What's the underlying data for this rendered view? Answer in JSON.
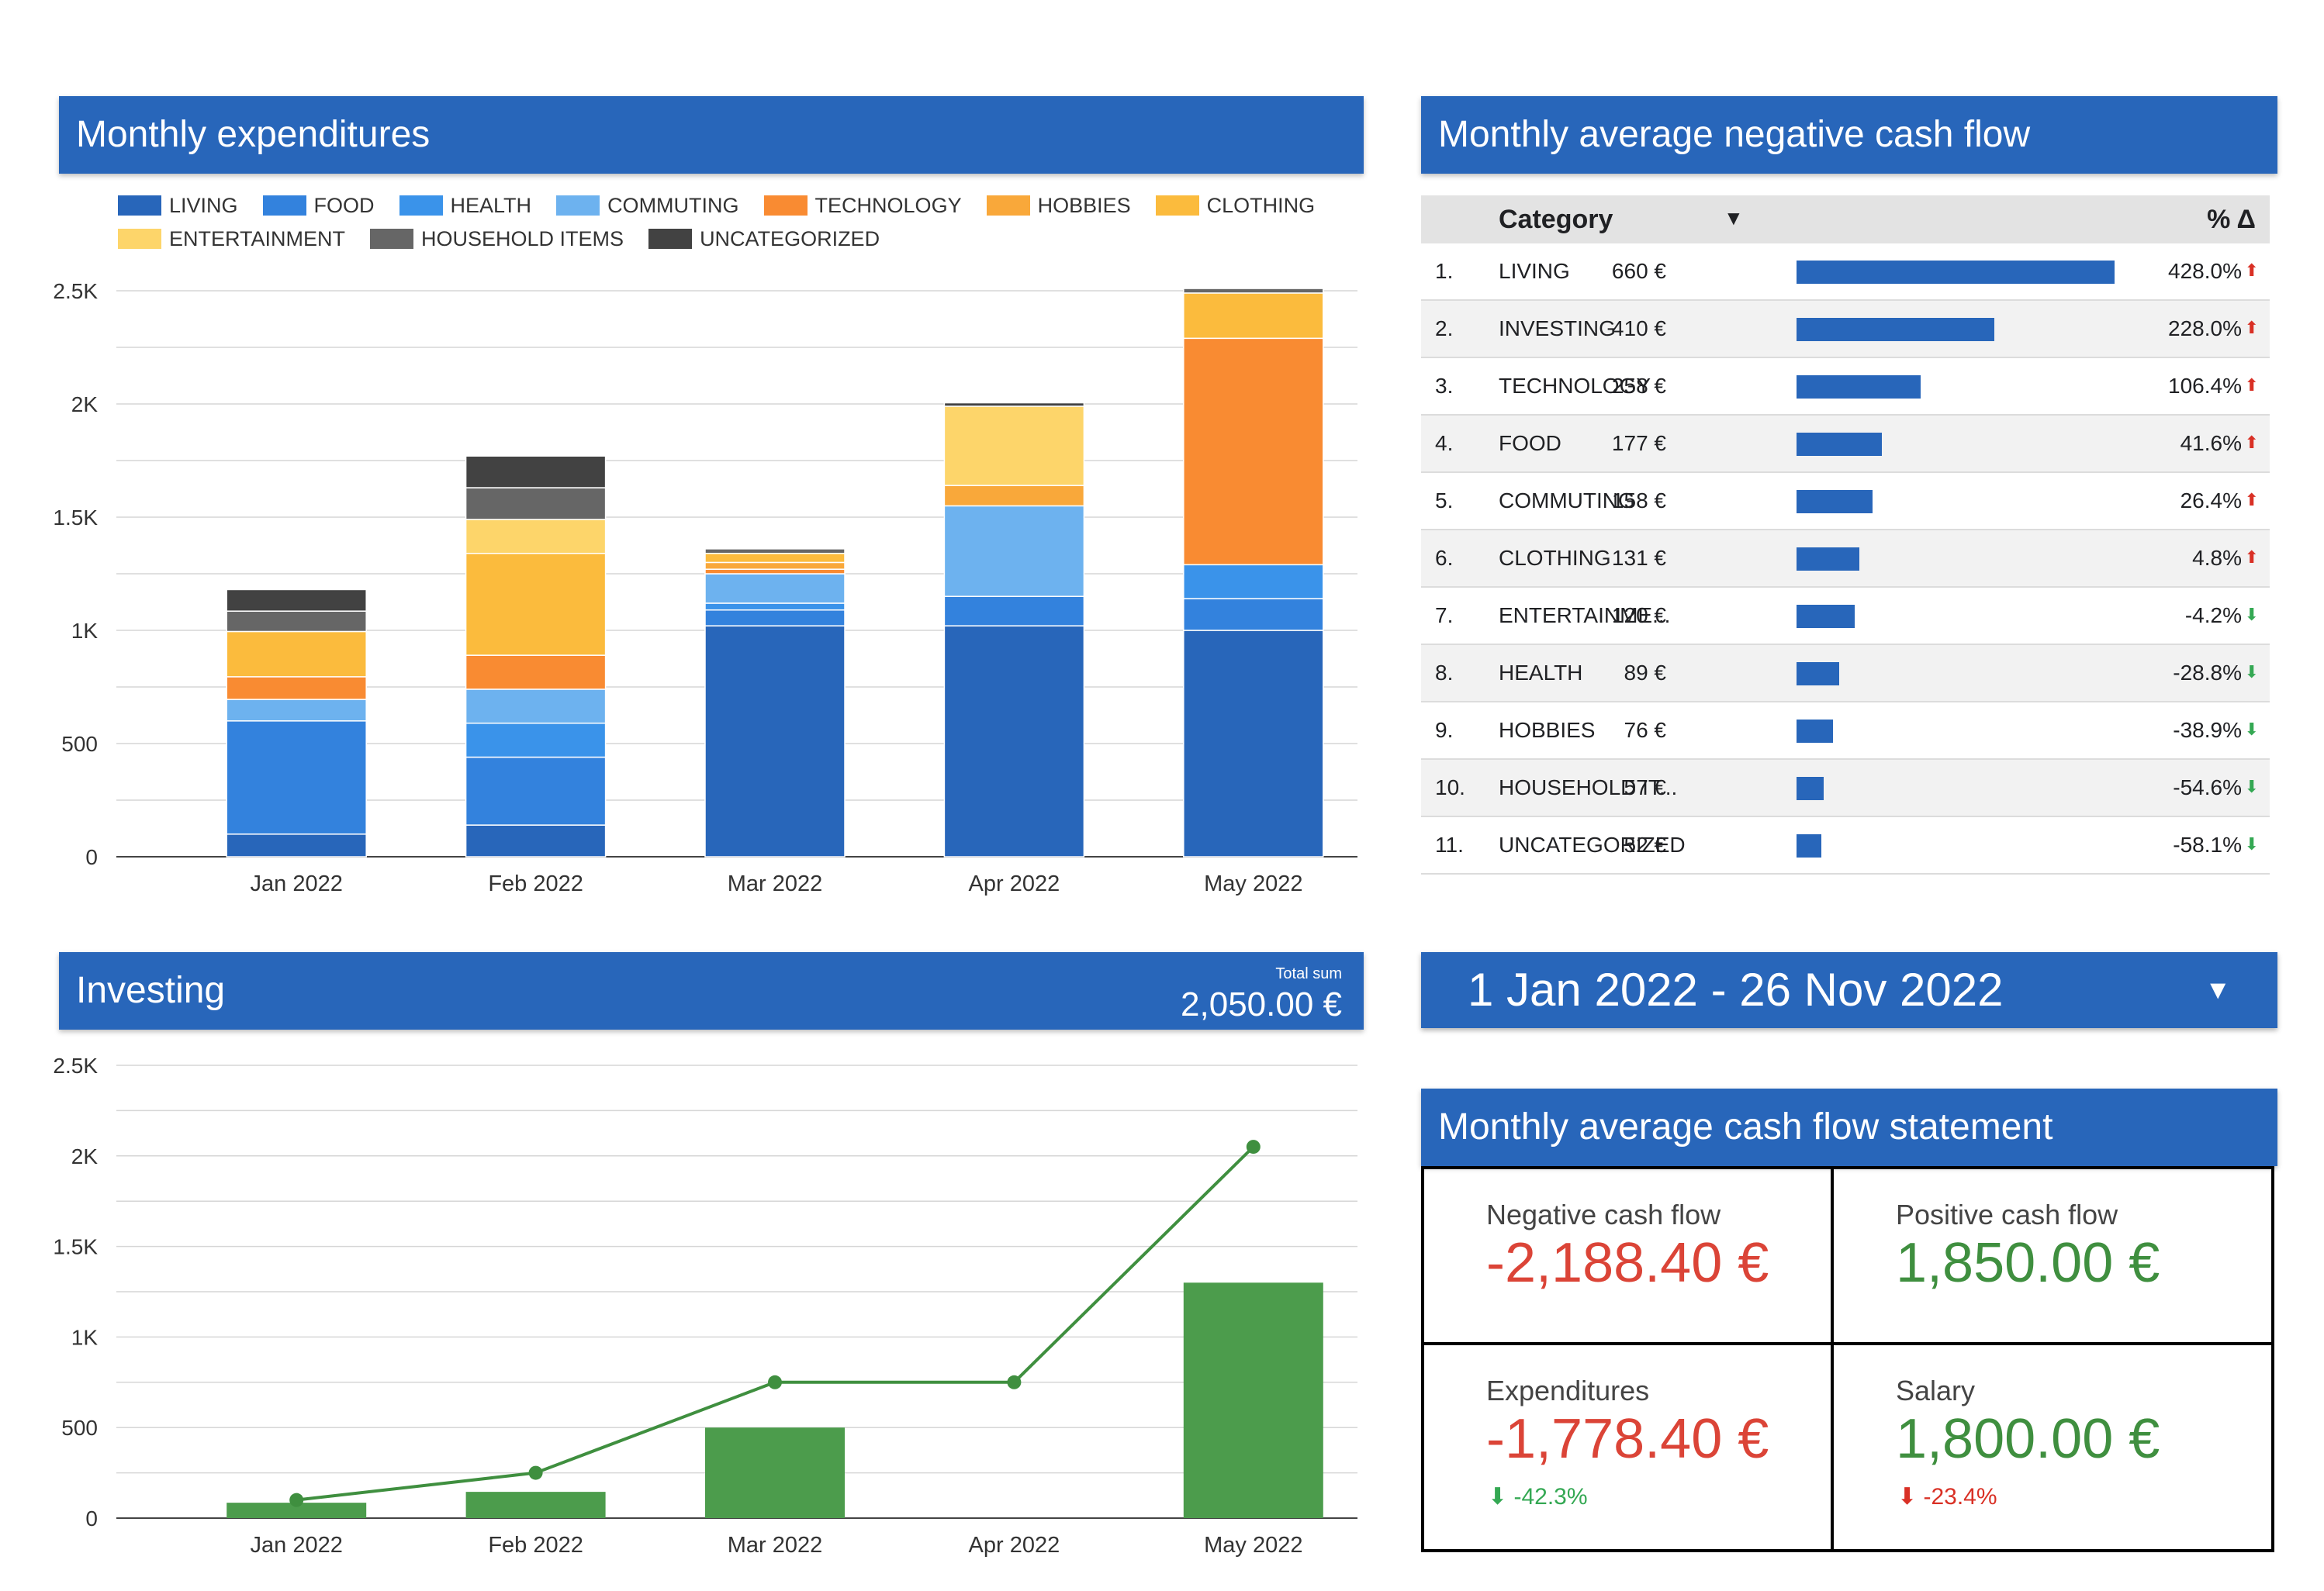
{
  "expenditures": {
    "title": "Monthly expenditures",
    "legend": [
      {
        "name": "LIVING",
        "color": "#2866ba"
      },
      {
        "name": "FOOD",
        "color": "#3382dd"
      },
      {
        "name": "HEALTH",
        "color": "#3a93ea"
      },
      {
        "name": "COMMUTING",
        "color": "#6db2ef"
      },
      {
        "name": "TECHNOLOGY",
        "color": "#f98b32"
      },
      {
        "name": "HOBBIES",
        "color": "#f9a83a"
      },
      {
        "name": "CLOTHING",
        "color": "#fbbb3d"
      },
      {
        "name": "ENTERTAINMENT",
        "color": "#fdd56a"
      },
      {
        "name": "HOUSEHOLD ITEMS",
        "color": "#666666"
      },
      {
        "name": "UNCATEGORIZED",
        "color": "#424242"
      }
    ]
  },
  "negative_cash_flow": {
    "title": "Monthly average negative cash flow",
    "col_category": "Category",
    "col_pct": "% Δ",
    "rows": [
      {
        "idx": "1.",
        "cat": "LIVING",
        "amt": "660 €",
        "value": 660,
        "pct": "428.0%",
        "dir": "up"
      },
      {
        "idx": "2.",
        "cat": "INVESTING",
        "amt": "410 €",
        "value": 410,
        "pct": "228.0%",
        "dir": "up"
      },
      {
        "idx": "3.",
        "cat": "TECHNOLOGY",
        "amt": "258 €",
        "value": 258,
        "pct": "106.4%",
        "dir": "up"
      },
      {
        "idx": "4.",
        "cat": "FOOD",
        "amt": "177 €",
        "value": 177,
        "pct": "41.6%",
        "dir": "up"
      },
      {
        "idx": "5.",
        "cat": "COMMUTING",
        "amt": "158 €",
        "value": 158,
        "pct": "26.4%",
        "dir": "up"
      },
      {
        "idx": "6.",
        "cat": "CLOTHING",
        "amt": "131 €",
        "value": 131,
        "pct": "4.8%",
        "dir": "up"
      },
      {
        "idx": "7.",
        "cat": "ENTERTAINME...",
        "amt": "120 €",
        "value": 120,
        "pct": "-4.2%",
        "dir": "down"
      },
      {
        "idx": "8.",
        "cat": "HEALTH",
        "amt": "89 €",
        "value": 89,
        "pct": "-28.8%",
        "dir": "down"
      },
      {
        "idx": "9.",
        "cat": "HOBBIES",
        "amt": "76 €",
        "value": 76,
        "pct": "-38.9%",
        "dir": "down"
      },
      {
        "idx": "10.",
        "cat": "HOUSEHOLD IT...",
        "amt": "57 €",
        "value": 57,
        "pct": "-54.6%",
        "dir": "down"
      },
      {
        "idx": "11.",
        "cat": "UNCATEGORIZED",
        "amt": "52 €",
        "value": 52,
        "pct": "-58.1%",
        "dir": "down"
      }
    ]
  },
  "investing": {
    "title": "Investing",
    "total_label": "Total sum",
    "total_value": "2,050.00 €"
  },
  "date_range": {
    "label": "1 Jan 2022 - 26 Nov 2022"
  },
  "cash_flow_statement": {
    "title": "Monthly average cash flow statement",
    "negative": {
      "label": "Negative cash flow",
      "value": "-2,188.40 €"
    },
    "positive": {
      "label": "Positive cash flow",
      "value": "1,850.00 €"
    },
    "expenditures": {
      "label": "Expenditures",
      "value": "-1,778.40 €",
      "change": "-42.3%"
    },
    "salary": {
      "label": "Salary",
      "value": "1,800.00 €",
      "change": "-23.4%"
    }
  },
  "chart_data": [
    {
      "type": "bar",
      "stacked": true,
      "categories": [
        "Jan 2022",
        "Feb 2022",
        "Mar 2022",
        "Apr 2022",
        "May 2022"
      ],
      "ylim": [
        0,
        2500
      ],
      "yticks": [
        0,
        500,
        1000,
        1500,
        2000,
        2500
      ],
      "ytick_labels": [
        "0",
        "500",
        "1K",
        "1.5K",
        "2K",
        "2.5K"
      ],
      "series": [
        {
          "name": "LIVING",
          "color": "#2866ba",
          "values": [
            100,
            140,
            1020,
            1020,
            1000
          ]
        },
        {
          "name": "FOOD",
          "color": "#3382dd",
          "values": [
            500,
            300,
            70,
            130,
            140
          ]
        },
        {
          "name": "HEALTH",
          "color": "#3a93ea",
          "values": [
            0,
            150,
            30,
            0,
            150
          ]
        },
        {
          "name": "COMMUTING",
          "color": "#6db2ef",
          "values": [
            95,
            150,
            130,
            400,
            0
          ]
        },
        {
          "name": "TECHNOLOGY",
          "color": "#f98b32",
          "values": [
            100,
            150,
            20,
            0,
            1000
          ]
        },
        {
          "name": "HOBBIES",
          "color": "#f9a83a",
          "values": [
            0,
            0,
            30,
            90,
            0
          ]
        },
        {
          "name": "CLOTHING",
          "color": "#fbbb3d",
          "values": [
            200,
            450,
            40,
            0,
            200
          ]
        },
        {
          "name": "ENTERTAINMENT",
          "color": "#fdd56a",
          "values": [
            0,
            150,
            0,
            350,
            0
          ]
        },
        {
          "name": "HOUSEHOLD ITEMS",
          "color": "#666666",
          "values": [
            90,
            140,
            20,
            0,
            20
          ]
        },
        {
          "name": "UNCATEGORIZED",
          "color": "#424242",
          "values": [
            95,
            140,
            0,
            15,
            0
          ]
        }
      ]
    },
    {
      "type": "bar",
      "categories": [
        "Jan 2022",
        "Feb 2022",
        "Mar 2022",
        "Apr 2022",
        "May 2022"
      ],
      "ylim": [
        0,
        2500
      ],
      "yticks": [
        0,
        500,
        1000,
        1500,
        2000,
        2500
      ],
      "ytick_labels": [
        "0",
        "500",
        "1K",
        "1.5K",
        "2K",
        "2.5K"
      ],
      "series": [
        {
          "type": "bar",
          "color": "#4c9c4c",
          "values": [
            85,
            145,
            500,
            0,
            1300
          ]
        },
        {
          "type": "line",
          "color": "#3f8f3f",
          "values": [
            100,
            250,
            750,
            750,
            2050
          ]
        }
      ]
    }
  ]
}
